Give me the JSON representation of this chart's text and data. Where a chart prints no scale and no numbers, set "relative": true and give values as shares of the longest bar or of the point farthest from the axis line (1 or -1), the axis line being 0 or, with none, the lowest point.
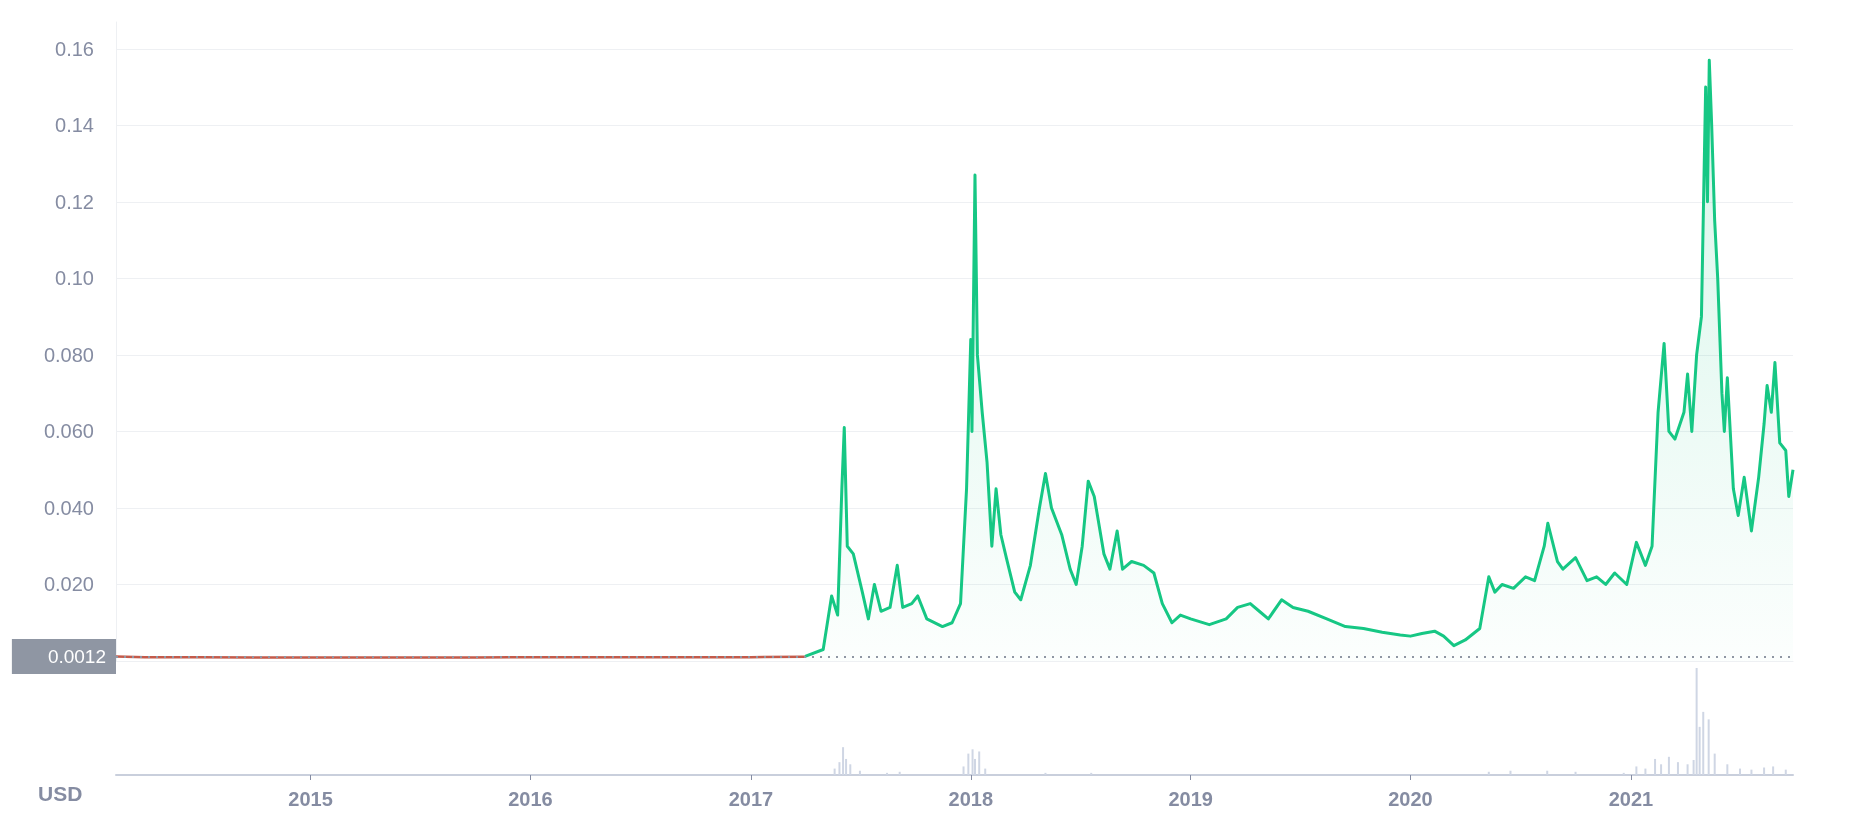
{
  "chart_data": [
    {
      "type": "line",
      "xlim": [
        "2014-02-12",
        "2021-09-27"
      ],
      "ylim": [
        0,
        0.167
      ],
      "xticks": [
        "2015",
        "2016",
        "2017",
        "2018",
        "2019",
        "2020",
        "2021"
      ],
      "yticks": [
        {
          "value": 0.02,
          "label": "0.020"
        },
        {
          "value": 0.04,
          "label": "0.040"
        },
        {
          "value": 0.06,
          "label": "0.060"
        },
        {
          "value": 0.08,
          "label": "0.080"
        },
        {
          "value": 0.1,
          "label": "0.10"
        },
        0.12,
        0.14,
        0.16
      ],
      "grid": "y",
      "tick_labels": "y",
      "ref_lines": [
        {
          "axis": "y",
          "value": 0.0012,
          "label": "0.0012",
          "color": "#8f96a3",
          "line_style": "dotted"
        }
      ],
      "series": [
        {
          "color": "#c45a4a",
          "x": [
            "2014-02-12",
            "2014-04-01",
            "2014-07-01",
            "2014-10-01",
            "2015-01-01",
            "2015-04-01",
            "2015-07-01",
            "2015-10-01",
            "2016-01-01",
            "2016-04-01",
            "2016-07-01",
            "2016-10-01",
            "2017-01-01",
            "2017-04-01"
          ],
          "values": [
            0.0012,
            0.001,
            0.001,
            0.0009,
            0.0009,
            0.0009,
            0.0009,
            0.0009,
            0.001,
            0.001,
            0.001,
            0.001,
            0.001,
            0.0011
          ]
        },
        {
          "type": "area",
          "color": "#16c784",
          "x": [
            "2017-04-01",
            "2017-05-01",
            "2017-05-15",
            "2017-05-25",
            "2017-06-01",
            "2017-06-05",
            "2017-06-10",
            "2017-06-20",
            "2017-07-05",
            "2017-07-15",
            "2017-07-25",
            "2017-08-05",
            "2017-08-20",
            "2017-09-01",
            "2017-09-10",
            "2017-09-25",
            "2017-10-05",
            "2017-10-20",
            "2017-11-15",
            "2017-12-01",
            "2017-12-15",
            "2017-12-25",
            "2018-01-01",
            "2018-01-03",
            "2018-01-08",
            "2018-01-12",
            "2018-01-20",
            "2018-01-28",
            "2018-02-05",
            "2018-02-12",
            "2018-02-20",
            "2018-03-01",
            "2018-03-15",
            "2018-03-25",
            "2018-04-10",
            "2018-04-25",
            "2018-05-05",
            "2018-05-15",
            "2018-06-01",
            "2018-06-15",
            "2018-06-25",
            "2018-07-05",
            "2018-07-15",
            "2018-07-25",
            "2018-08-10",
            "2018-08-20",
            "2018-09-01",
            "2018-09-10",
            "2018-09-25",
            "2018-10-15",
            "2018-11-01",
            "2018-11-15",
            "2018-12-01",
            "2018-12-15",
            "2019-01-01",
            "2019-02-01",
            "2019-03-01",
            "2019-03-20",
            "2019-04-10",
            "2019-04-25",
            "2019-05-10",
            "2019-06-01",
            "2019-06-20",
            "2019-07-15",
            "2019-08-15",
            "2019-09-15",
            "2019-10-15",
            "2019-11-15",
            "2019-12-15",
            "2020-01-01",
            "2020-01-20",
            "2020-02-10",
            "2020-02-25",
            "2020-03-13",
            "2020-04-01",
            "2020-04-25",
            "2020-05-10",
            "2020-05-20",
            "2020-06-01",
            "2020-06-20",
            "2020-07-10",
            "2020-07-25",
            "2020-08-10",
            "2020-08-16",
            "2020-09-01",
            "2020-09-10",
            "2020-10-01",
            "2020-10-20",
            "2020-11-05",
            "2020-11-20",
            "2020-12-05",
            "2020-12-25",
            "2021-01-10",
            "2021-01-25",
            "2021-02-05",
            "2021-02-15",
            "2021-02-25",
            "2021-03-05",
            "2021-03-15",
            "2021-03-30",
            "2021-04-05",
            "2021-04-12",
            "2021-04-20",
            "2021-04-28",
            "2021-05-05",
            "2021-05-08",
            "2021-05-11",
            "2021-05-15",
            "2021-05-20",
            "2021-05-25",
            "2021-06-01",
            "2021-06-05",
            "2021-06-10",
            "2021-06-20",
            "2021-06-28",
            "2021-07-08",
            "2021-07-20",
            "2021-08-01",
            "2021-08-10",
            "2021-08-15",
            "2021-08-22",
            "2021-08-28",
            "2021-09-05",
            "2021-09-15",
            "2021-09-20",
            "2021-09-27"
          ],
          "values": [
            0.0012,
            0.003,
            0.017,
            0.012,
            0.045,
            0.061,
            0.03,
            0.028,
            0.018,
            0.011,
            0.02,
            0.013,
            0.014,
            0.025,
            0.014,
            0.015,
            0.017,
            0.011,
            0.009,
            0.01,
            0.015,
            0.045,
            0.084,
            0.06,
            0.127,
            0.08,
            0.065,
            0.052,
            0.03,
            0.045,
            0.033,
            0.027,
            0.018,
            0.016,
            0.025,
            0.04,
            0.049,
            0.04,
            0.033,
            0.024,
            0.02,
            0.03,
            0.047,
            0.043,
            0.028,
            0.024,
            0.034,
            0.024,
            0.026,
            0.025,
            0.023,
            0.015,
            0.01,
            0.012,
            0.011,
            0.0095,
            0.011,
            0.014,
            0.015,
            0.013,
            0.011,
            0.016,
            0.014,
            0.013,
            0.011,
            0.009,
            0.0085,
            0.0075,
            0.0068,
            0.0065,
            0.0072,
            0.0078,
            0.0065,
            0.004,
            0.0055,
            0.0085,
            0.022,
            0.018,
            0.02,
            0.019,
            0.022,
            0.021,
            0.03,
            0.036,
            0.026,
            0.024,
            0.027,
            0.021,
            0.022,
            0.02,
            0.023,
            0.02,
            0.031,
            0.025,
            0.03,
            0.065,
            0.083,
            0.06,
            0.058,
            0.065,
            0.075,
            0.06,
            0.08,
            0.09,
            0.15,
            0.12,
            0.157,
            0.14,
            0.115,
            0.1,
            0.07,
            0.06,
            0.074,
            0.045,
            0.038,
            0.048,
            0.034,
            0.048,
            0.062,
            0.072,
            0.065,
            0.078,
            0.057,
            0.055,
            0.043,
            0.05
          ]
        }
      ]
    },
    {
      "type": "bar",
      "ylabel": "USD",
      "relative": true,
      "tick_labels": "x",
      "xlim": [
        "2014-02-12",
        "2021-09-27"
      ],
      "xticks": [
        "2015",
        "2016",
        "2017",
        "2018",
        "2019",
        "2020",
        "2021"
      ],
      "series": [
        {
          "color": "#cfd6e4",
          "x": [
            "2017-05-20",
            "2017-05-28",
            "2017-06-03",
            "2017-06-08",
            "2017-06-15",
            "2017-07-01",
            "2017-08-15",
            "2017-09-05",
            "2017-12-20",
            "2017-12-28",
            "2018-01-04",
            "2018-01-08",
            "2018-01-15",
            "2018-01-25",
            "2018-05-05",
            "2018-07-20",
            "2020-05-10",
            "2020-06-15",
            "2020-08-15",
            "2020-10-01",
            "2020-12-20",
            "2021-01-10",
            "2021-01-25",
            "2021-02-10",
            "2021-02-20",
            "2021-03-05",
            "2021-03-20",
            "2021-04-05",
            "2021-04-15",
            "2021-04-20",
            "2021-04-25",
            "2021-05-01",
            "2021-05-10",
            "2021-05-20",
            "2021-06-10",
            "2021-07-01",
            "2021-07-20",
            "2021-08-10",
            "2021-08-25",
            "2021-09-15"
          ],
          "values": [
            0.06,
            0.12,
            0.26,
            0.15,
            0.1,
            0.04,
            0.02,
            0.03,
            0.08,
            0.2,
            0.24,
            0.15,
            0.22,
            0.06,
            0.02,
            0.02,
            0.03,
            0.04,
            0.04,
            0.03,
            0.02,
            0.08,
            0.06,
            0.15,
            0.1,
            0.17,
            0.12,
            0.1,
            0.14,
            1,
            0.45,
            0.59,
            0.52,
            0.2,
            0.1,
            0.06,
            0.05,
            0.07,
            0.08,
            0.05
          ]
        }
      ]
    }
  ]
}
